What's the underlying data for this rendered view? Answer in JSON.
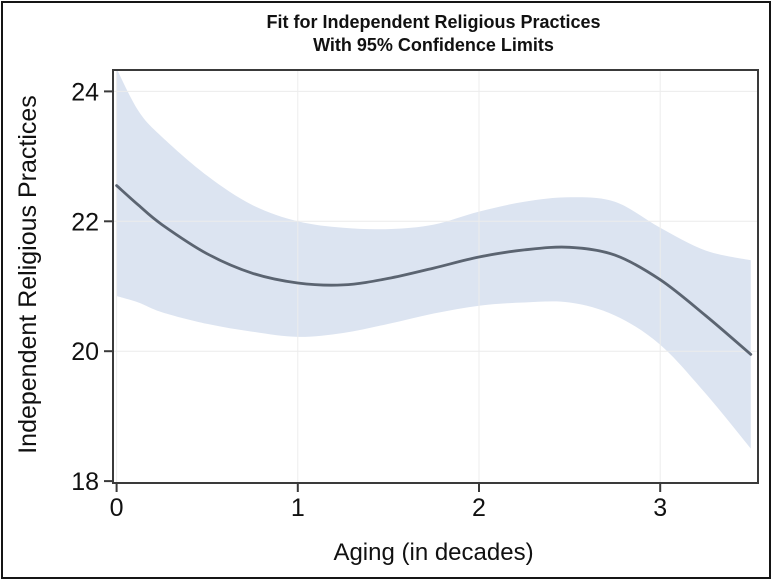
{
  "figure": {
    "background": "#ffffff",
    "border_color": "#151515"
  },
  "chart_data": {
    "type": "line",
    "title_lines": [
      "Fit for Independent Religious Practices",
      "With 95% Confidence Limits"
    ],
    "title": "Fit for Independent Religious Practices With 95% Confidence Limits",
    "xlabel": "Aging (in decades)",
    "ylabel": "Independent Religious Practices",
    "xlim": [
      -0.02,
      3.54
    ],
    "ylim": [
      17.97,
      24.33
    ],
    "xticks": [
      0,
      1,
      2,
      3
    ],
    "yticks": [
      18,
      20,
      22,
      24
    ],
    "grid": true,
    "legend_position": "none",
    "x": [
      0,
      0.12,
      0.25,
      0.5,
      0.75,
      1.0,
      1.25,
      1.5,
      1.75,
      2.0,
      2.25,
      2.5,
      2.75,
      3.0,
      3.25,
      3.5
    ],
    "series": [
      {
        "name": "fit_line",
        "values": [
          22.55,
          22.25,
          21.95,
          21.5,
          21.2,
          21.05,
          21.02,
          21.12,
          21.28,
          21.45,
          21.56,
          21.6,
          21.48,
          21.1,
          20.55,
          19.95
        ]
      },
      {
        "name": "upper_95_confidence_limit",
        "values": [
          24.35,
          23.7,
          23.3,
          22.7,
          22.25,
          22.0,
          21.9,
          21.88,
          21.95,
          22.15,
          22.3,
          22.37,
          22.3,
          21.9,
          21.55,
          21.4
        ]
      },
      {
        "name": "lower_95_confidence_limit",
        "values": [
          20.85,
          20.75,
          20.6,
          20.42,
          20.3,
          20.22,
          20.28,
          20.42,
          20.58,
          20.7,
          20.75,
          20.75,
          20.55,
          20.1,
          19.35,
          18.5
        ]
      }
    ],
    "colors": {
      "confidence_band": "#dce4f1",
      "fit_line": "#5b6471",
      "gridline": "#ececec",
      "frame": "#3a3a3a",
      "text": "#111111"
    }
  }
}
